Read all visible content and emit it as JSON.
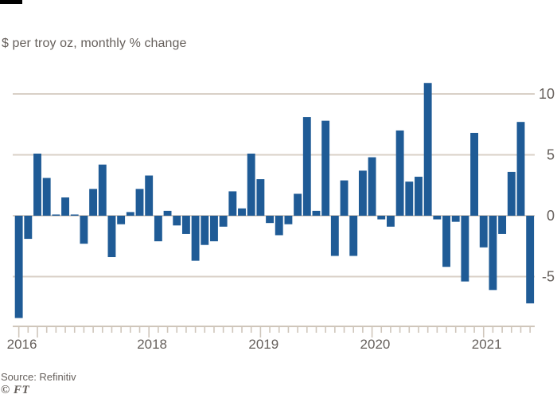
{
  "header": {
    "subtitle": "$ per troy oz, monthly % change"
  },
  "footer": {
    "source": "Source: Refinitiv",
    "logo": "© FT"
  },
  "colors": {
    "background": "#ffffff",
    "bar": "#1f5b96",
    "grid": "#d9d0c7",
    "axis": "#cfc6bb",
    "text": "#66605c",
    "slug": "#000000"
  },
  "chart_data": {
    "type": "bar",
    "title": "",
    "subtitle": "$ per troy oz, monthly % change",
    "xlabel": "",
    "ylabel": "",
    "grid": true,
    "legend": "none",
    "y_ticks": [
      10,
      5,
      0,
      -5
    ],
    "ylim": [
      -9,
      11.5
    ],
    "x": [
      "Nov 2016",
      "Dec 2016",
      "Jan 2017",
      "Feb 2017",
      "Mar 2017",
      "Apr 2017",
      "May 2017",
      "Jun 2017",
      "Jul 2017",
      "Aug 2017",
      "Sep 2017",
      "Oct 2017",
      "Nov 2017",
      "Dec 2017",
      "Jan 2018",
      "Feb 2018",
      "Mar 2018",
      "Apr 2018",
      "May 2018",
      "Jun 2018",
      "Jul 2018",
      "Aug 2018",
      "Sep 2018",
      "Oct 2018",
      "Nov 2018",
      "Dec 2018",
      "Jan 2019",
      "Feb 2019",
      "Mar 2019",
      "Apr 2019",
      "May 2019",
      "Jun 2019",
      "Jul 2019",
      "Aug 2019",
      "Sep 2019",
      "Oct 2019",
      "Nov 2019",
      "Dec 2019",
      "Jan 2020",
      "Feb 2020",
      "Mar 2020",
      "Apr 2020",
      "May 2020",
      "Jun 2020",
      "Jul 2020",
      "Aug 2020",
      "Sep 2020",
      "Oct 2020",
      "Nov 2020",
      "Dec 2020",
      "Jan 2021",
      "Feb 2021",
      "Mar 2021",
      "Apr 2021",
      "May 2021",
      "Jun 2021"
    ],
    "values": [
      -8.4,
      -1.9,
      5.1,
      3.1,
      0.1,
      1.5,
      0.1,
      -2.3,
      2.2,
      4.2,
      -3.4,
      -0.7,
      0.3,
      2.2,
      3.3,
      -2.1,
      0.4,
      -0.8,
      -1.5,
      -3.7,
      -2.4,
      -2.1,
      -0.9,
      2.0,
      0.6,
      5.1,
      3.0,
      -0.6,
      -1.6,
      -0.7,
      1.8,
      8.1,
      0.4,
      7.8,
      -3.3,
      2.9,
      -3.3,
      3.7,
      4.8,
      -0.3,
      -0.9,
      7.0,
      2.8,
      3.2,
      10.9,
      -0.3,
      -4.2,
      -0.5,
      -5.4,
      6.8,
      -2.6,
      -6.1,
      -1.5,
      3.6,
      7.7,
      -7.2
    ],
    "year_labels": [
      {
        "label": "2016",
        "month_index": 0
      },
      {
        "label": "2018",
        "month_index": 14
      },
      {
        "label": "2019",
        "month_index": 26
      },
      {
        "label": "2020",
        "month_index": 38
      },
      {
        "label": "2021",
        "month_index": 50
      }
    ],
    "tall_tick_indices": [
      0,
      2,
      14,
      26,
      38,
      50
    ]
  }
}
